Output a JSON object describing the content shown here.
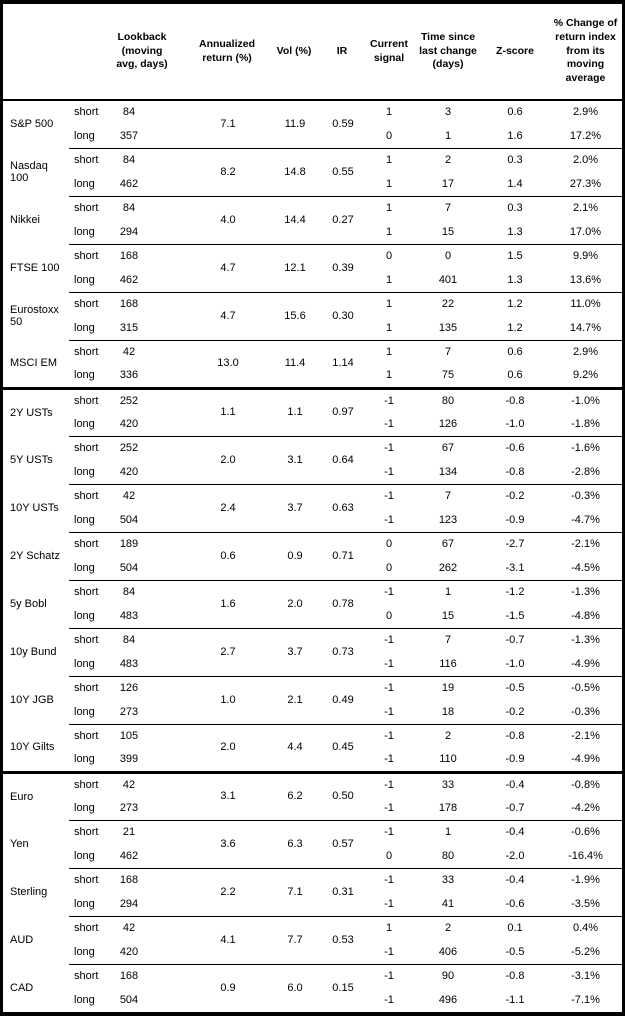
{
  "table": {
    "headers": {
      "lookback": "Lookback\n(moving\navg, days)",
      "annualized": "Annualized\nreturn (%)",
      "vol": "Vol (%)",
      "ir": "IR",
      "signal": "Current\nsignal",
      "time": "Time since\nlast change\n(days)",
      "zscore": "Z-score",
      "pct_change": "% Change of\nreturn index\nfrom its\nmoving\naverage"
    },
    "row_labels": {
      "short": "short",
      "long": "long"
    },
    "groups": [
      {
        "asset": "S&P 500",
        "section_end": false,
        "annualized": "7.1",
        "vol": "11.9",
        "ir": "0.59",
        "short": {
          "lookback": "84",
          "signal": "1",
          "time": "3",
          "zscore": "0.6",
          "pct": "2.9%"
        },
        "long": {
          "lookback": "357",
          "signal": "0",
          "time": "1",
          "zscore": "1.6",
          "pct": "17.2%"
        }
      },
      {
        "asset": "Nasdaq 100",
        "section_end": false,
        "annualized": "8.2",
        "vol": "14.8",
        "ir": "0.55",
        "short": {
          "lookback": "84",
          "signal": "1",
          "time": "2",
          "zscore": "0.3",
          "pct": "2.0%"
        },
        "long": {
          "lookback": "462",
          "signal": "1",
          "time": "17",
          "zscore": "1.4",
          "pct": "27.3%"
        }
      },
      {
        "asset": "Nikkei",
        "section_end": false,
        "annualized": "4.0",
        "vol": "14.4",
        "ir": "0.27",
        "short": {
          "lookback": "84",
          "signal": "1",
          "time": "7",
          "zscore": "0.3",
          "pct": "2.1%"
        },
        "long": {
          "lookback": "294",
          "signal": "1",
          "time": "15",
          "zscore": "1.3",
          "pct": "17.0%"
        }
      },
      {
        "asset": "FTSE 100",
        "section_end": false,
        "annualized": "4.7",
        "vol": "12.1",
        "ir": "0.39",
        "short": {
          "lookback": "168",
          "signal": "0",
          "time": "0",
          "zscore": "1.5",
          "pct": "9.9%"
        },
        "long": {
          "lookback": "462",
          "signal": "1",
          "time": "401",
          "zscore": "1.3",
          "pct": "13.6%"
        }
      },
      {
        "asset": "Eurostoxx 50",
        "section_end": false,
        "annualized": "4.7",
        "vol": "15.6",
        "ir": "0.30",
        "short": {
          "lookback": "168",
          "signal": "1",
          "time": "22",
          "zscore": "1.2",
          "pct": "11.0%"
        },
        "long": {
          "lookback": "315",
          "signal": "1",
          "time": "135",
          "zscore": "1.2",
          "pct": "14.7%"
        }
      },
      {
        "asset": "MSCI EM",
        "section_end": true,
        "annualized": "13.0",
        "vol": "11.4",
        "ir": "1.14",
        "short": {
          "lookback": "42",
          "signal": "1",
          "time": "7",
          "zscore": "0.6",
          "pct": "2.9%"
        },
        "long": {
          "lookback": "336",
          "signal": "1",
          "time": "75",
          "zscore": "0.6",
          "pct": "9.2%"
        }
      },
      {
        "asset": "2Y USTs",
        "section_end": false,
        "annualized": "1.1",
        "vol": "1.1",
        "ir": "0.97",
        "short": {
          "lookback": "252",
          "signal": "-1",
          "time": "80",
          "zscore": "-0.8",
          "pct": "-1.0%"
        },
        "long": {
          "lookback": "420",
          "signal": "-1",
          "time": "126",
          "zscore": "-1.0",
          "pct": "-1.8%"
        }
      },
      {
        "asset": "5Y USTs",
        "section_end": false,
        "annualized": "2.0",
        "vol": "3.1",
        "ir": "0.64",
        "short": {
          "lookback": "252",
          "signal": "-1",
          "time": "67",
          "zscore": "-0.6",
          "pct": "-1.6%"
        },
        "long": {
          "lookback": "420",
          "signal": "-1",
          "time": "134",
          "zscore": "-0.8",
          "pct": "-2.8%"
        }
      },
      {
        "asset": "10Y USTs",
        "section_end": false,
        "annualized": "2.4",
        "vol": "3.7",
        "ir": "0.63",
        "short": {
          "lookback": "42",
          "signal": "-1",
          "time": "7",
          "zscore": "-0.2",
          "pct": "-0.3%"
        },
        "long": {
          "lookback": "504",
          "signal": "-1",
          "time": "123",
          "zscore": "-0.9",
          "pct": "-4.7%"
        }
      },
      {
        "asset": "2Y Schatz",
        "section_end": false,
        "annualized": "0.6",
        "vol": "0.9",
        "ir": "0.71",
        "short": {
          "lookback": "189",
          "signal": "0",
          "time": "67",
          "zscore": "-2.7",
          "pct": "-2.1%"
        },
        "long": {
          "lookback": "504",
          "signal": "0",
          "time": "262",
          "zscore": "-3.1",
          "pct": "-4.5%"
        }
      },
      {
        "asset": "5y Bobl",
        "section_end": false,
        "annualized": "1.6",
        "vol": "2.0",
        "ir": "0.78",
        "short": {
          "lookback": "84",
          "signal": "-1",
          "time": "1",
          "zscore": "-1.2",
          "pct": "-1.3%"
        },
        "long": {
          "lookback": "483",
          "signal": "0",
          "time": "15",
          "zscore": "-1.5",
          "pct": "-4.8%"
        }
      },
      {
        "asset": "10y Bund",
        "section_end": false,
        "annualized": "2.7",
        "vol": "3.7",
        "ir": "0.73",
        "short": {
          "lookback": "84",
          "signal": "-1",
          "time": "7",
          "zscore": "-0.7",
          "pct": "-1.3%"
        },
        "long": {
          "lookback": "483",
          "signal": "-1",
          "time": "116",
          "zscore": "-1.0",
          "pct": "-4.9%"
        }
      },
      {
        "asset": "10Y JGB",
        "section_end": false,
        "annualized": "1.0",
        "vol": "2.1",
        "ir": "0.49",
        "short": {
          "lookback": "126",
          "signal": "-1",
          "time": "19",
          "zscore": "-0.5",
          "pct": "-0.5%"
        },
        "long": {
          "lookback": "273",
          "signal": "-1",
          "time": "18",
          "zscore": "-0.2",
          "pct": "-0.3%"
        }
      },
      {
        "asset": "10Y Gilts",
        "section_end": true,
        "annualized": "2.0",
        "vol": "4.4",
        "ir": "0.45",
        "short": {
          "lookback": "105",
          "signal": "-1",
          "time": "2",
          "zscore": "-0.8",
          "pct": "-2.1%"
        },
        "long": {
          "lookback": "399",
          "signal": "-1",
          "time": "110",
          "zscore": "-0.9",
          "pct": "-4.9%"
        }
      },
      {
        "asset": "Euro",
        "section_end": false,
        "annualized": "3.1",
        "vol": "6.2",
        "ir": "0.50",
        "short": {
          "lookback": "42",
          "signal": "-1",
          "time": "33",
          "zscore": "-0.4",
          "pct": "-0.8%"
        },
        "long": {
          "lookback": "273",
          "signal": "-1",
          "time": "178",
          "zscore": "-0.7",
          "pct": "-4.2%"
        }
      },
      {
        "asset": "Yen",
        "section_end": false,
        "annualized": "3.6",
        "vol": "6.3",
        "ir": "0.57",
        "short": {
          "lookback": "21",
          "signal": "-1",
          "time": "1",
          "zscore": "-0.4",
          "pct": "-0.6%"
        },
        "long": {
          "lookback": "462",
          "signal": "0",
          "time": "80",
          "zscore": "-2.0",
          "pct": "-16.4%"
        }
      },
      {
        "asset": "Sterling",
        "section_end": false,
        "annualized": "2.2",
        "vol": "7.1",
        "ir": "0.31",
        "short": {
          "lookback": "168",
          "signal": "-1",
          "time": "33",
          "zscore": "-0.4",
          "pct": "-1.9%"
        },
        "long": {
          "lookback": "294",
          "signal": "-1",
          "time": "41",
          "zscore": "-0.6",
          "pct": "-3.5%"
        }
      },
      {
        "asset": "AUD",
        "section_end": false,
        "annualized": "4.1",
        "vol": "7.7",
        "ir": "0.53",
        "short": {
          "lookback": "42",
          "signal": "1",
          "time": "2",
          "zscore": "0.1",
          "pct": "0.4%"
        },
        "long": {
          "lookback": "420",
          "signal": "-1",
          "time": "406",
          "zscore": "-0.5",
          "pct": "-5.2%"
        }
      },
      {
        "asset": "CAD",
        "section_end": false,
        "annualized": "0.9",
        "vol": "6.0",
        "ir": "0.15",
        "short": {
          "lookback": "168",
          "signal": "-1",
          "time": "90",
          "zscore": "-0.8",
          "pct": "-3.1%"
        },
        "long": {
          "lookback": "504",
          "signal": "-1",
          "time": "496",
          "zscore": "-1.1",
          "pct": "-7.1%"
        }
      }
    ]
  }
}
